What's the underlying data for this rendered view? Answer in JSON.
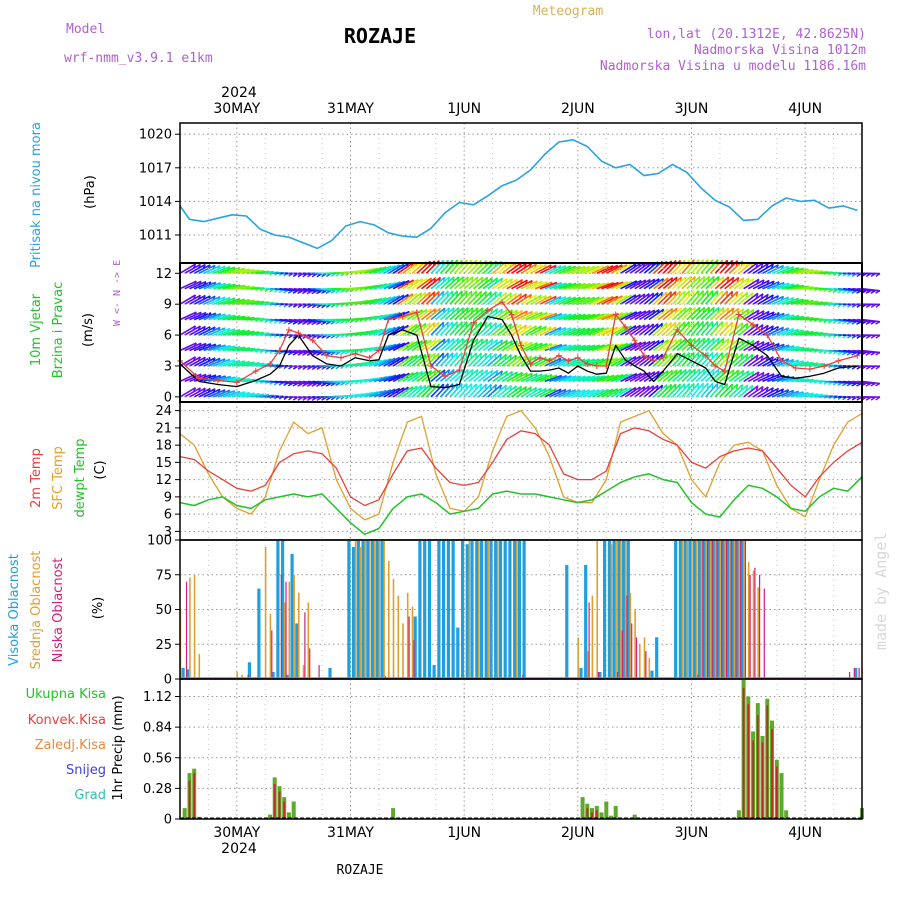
{
  "header": {
    "model_label": "Model",
    "model_name": "wrf-nmm_v3.9.1 e1km",
    "location": "ROZAJE",
    "product": "Meteogram",
    "coords": "lon,lat (20.1312E, 42.8625N)",
    "altitude": "Nadmorska Visina 1012m",
    "model_altitude": "Nadmorska Visina u modelu 1186.16m",
    "credit": "made by Angel",
    "footer_location": "ROZAJE"
  },
  "colors": {
    "pressure": "#29a3e0",
    "t2m": "#e8413c",
    "tsfc": "#e0a030",
    "dewpt": "#22c22a",
    "cloud_high": "#1e9fe0",
    "cloud_mid": "#e0a030",
    "cloud_low": "#d0207a",
    "precip_total": "#5ea82a",
    "precip_conv": "#c22a2a",
    "precip_snow": "#4040e0",
    "precip_grad": "#30c0b0",
    "wind_speed": "#000000",
    "wind_gust": "#e8413c"
  },
  "time_axis": {
    "top_year": "2024",
    "bottom_year": "2024",
    "dates": [
      "30MAY",
      "31MAY",
      "1JUN",
      "2JUN",
      "3JUN",
      "4JUN"
    ],
    "start_hour": -12,
    "end_hour": 132
  },
  "panels": {
    "pressure": {
      "title": "Pritisak na nivou mora",
      "unit": "(hPa)",
      "yticks": [
        "1020",
        "1017",
        "1014",
        "1011"
      ]
    },
    "wind": {
      "title1": "10m Vjetar",
      "title2": "Brzina i Pravac",
      "unit": "(m/s)",
      "compass": "W <- N -> E",
      "yticks": [
        "12",
        "9",
        "6",
        "3",
        "0"
      ]
    },
    "temp": {
      "title1": "2m Temp",
      "title2": "SFC Temp",
      "title3": "dewpt Temp",
      "unit": "(C)",
      "yticks": [
        "24",
        "21",
        "18",
        "15",
        "12",
        "9",
        "6",
        "3"
      ]
    },
    "cloud": {
      "title1": "Visoka Oblacnost",
      "title2": "Srednja Oblacnost",
      "title3": "Niska Oblacnost",
      "unit": "(%)",
      "yticks": [
        "100",
        "75",
        "50",
        "25",
        "0"
      ]
    },
    "precip": {
      "legend": [
        "Ukupna Kisa",
        "Konvek.Kisa",
        "Zaledj.Kisa",
        "Snijeg",
        "Grad"
      ],
      "unit": "1hr Precip (mm)",
      "yticks": [
        "1.12",
        "0.84",
        "0.56",
        "0.28",
        "0"
      ]
    }
  },
  "chart_data": [
    {
      "type": "line",
      "title": "Pritisak na nivou mora",
      "ylabel": "(hPa)",
      "ylim": [
        1008.5,
        1021
      ],
      "x": [
        -12,
        -10,
        -7,
        -4,
        -1,
        2,
        5,
        8,
        11,
        14,
        17,
        20,
        23,
        26,
        29,
        32,
        35,
        38,
        41,
        44,
        47,
        50,
        53,
        56,
        59,
        62,
        65,
        68,
        71,
        74,
        77,
        80,
        83,
        86,
        89,
        92,
        95,
        98,
        101,
        104,
        107,
        110,
        113,
        116,
        119,
        122,
        125,
        128,
        131
      ],
      "series": [
        {
          "values": [
            1013.6,
            1012.4,
            1012.2,
            1012.5,
            1012.8,
            1012.7,
            1011.5,
            1011.0,
            1010.8,
            1010.3,
            1009.8,
            1010.5,
            1011.8,
            1012.2,
            1011.9,
            1011.2,
            1010.9,
            1010.8,
            1011.6,
            1013.0,
            1013.9,
            1013.7,
            1014.5,
            1015.4,
            1015.9,
            1016.8,
            1018.2,
            1019.3,
            1019.5,
            1018.9,
            1017.6,
            1017.0,
            1017.3,
            1016.3,
            1016.5,
            1017.3,
            1016.6,
            1015.2,
            1014.1,
            1013.5,
            1012.3,
            1012.4,
            1013.6,
            1014.3,
            1014.0,
            1014.1,
            1013.4,
            1013.6,
            1013.2
          ]
        }
      ]
    },
    {
      "type": "line",
      "title": "10m Vjetar Brzina i Pravac",
      "ylabel": "(m/s)",
      "ylim": [
        -0.5,
        13
      ],
      "x": [
        -12,
        -8,
        -4,
        0,
        4,
        7,
        9,
        11,
        13,
        16,
        19,
        22,
        25,
        28,
        30,
        32,
        35,
        38,
        41,
        44,
        47,
        50,
        53,
        56,
        58,
        60,
        62,
        64,
        66,
        68,
        70,
        72,
        74,
        76,
        78,
        80,
        82,
        84,
        86,
        88,
        90,
        93,
        96,
        99,
        101,
        103,
        106,
        109,
        112,
        115,
        118,
        121,
        124,
        127,
        131
      ],
      "series": [
        {
          "values": [
            3.2,
            1.5,
            1.2,
            1.0,
            1.6,
            2.2,
            3.0,
            5.0,
            6.0,
            4.0,
            3.2,
            3.0,
            3.8,
            3.5,
            3.6,
            6.0,
            6.5,
            6.0,
            1.0,
            0.9,
            1.2,
            5.5,
            7.8,
            7.5,
            6.0,
            4.0,
            2.5,
            2.5,
            2.6,
            2.8,
            2.3,
            3.0,
            2.5,
            2.2,
            2.3,
            5.0,
            3.6,
            3.0,
            2.5,
            1.5,
            2.5,
            4.2,
            3.5,
            2.8,
            1.5,
            1.2,
            5.7,
            5.0,
            4.0,
            2.0,
            1.8,
            2.0,
            2.3,
            2.8,
            3.0
          ]
        },
        {
          "name": "",
          "values": [
            3.5,
            1.8,
            1.6,
            1.4,
            2.5,
            3.2,
            4.5,
            6.5,
            6.2,
            5.5,
            4.0,
            3.8,
            4.2,
            3.8,
            4.5,
            7.5,
            7.8,
            8.2,
            3.0,
            2.0,
            2.6,
            7.2,
            8.4,
            9.2,
            8.0,
            5.0,
            3.2,
            3.8,
            3.5,
            4.0,
            3.5,
            3.8,
            3.2,
            3.0,
            3.0,
            8.0,
            6.8,
            5.5,
            4.0,
            3.5,
            3.8,
            6.5,
            5.0,
            4.0,
            3.0,
            2.5,
            8.0,
            7.0,
            6.0,
            3.5,
            2.8,
            2.7,
            3.0,
            3.5,
            4.0
          ]
        }
      ]
    },
    {
      "type": "line",
      "title": "2m Temp / SFC Temp / dewpt Temp",
      "ylabel": "(C)",
      "ylim": [
        1.5,
        25.5
      ],
      "x": [
        -12,
        -9,
        -6,
        -3,
        0,
        3,
        6,
        9,
        12,
        15,
        18,
        21,
        24,
        27,
        30,
        33,
        36,
        39,
        42,
        45,
        48,
        51,
        54,
        57,
        60,
        63,
        66,
        69,
        72,
        75,
        78,
        81,
        84,
        87,
        90,
        93,
        96,
        99,
        102,
        105,
        108,
        111,
        114,
        117,
        120,
        123,
        126,
        129,
        132
      ],
      "series": [
        {
          "name": "2m Temp",
          "values": [
            16.0,
            15.5,
            13.5,
            12.0,
            10.5,
            10.0,
            11.0,
            15.0,
            16.5,
            17.0,
            16.5,
            14.0,
            9.0,
            7.5,
            8.5,
            13.0,
            17.0,
            17.5,
            14.0,
            11.5,
            11.0,
            11.5,
            15.0,
            19.0,
            20.5,
            20.0,
            18.0,
            13.0,
            12.0,
            12.0,
            13.5,
            20.0,
            21.0,
            20.5,
            19.0,
            18.0,
            15.0,
            14.0,
            16.0,
            17.0,
            17.5,
            17.0,
            14.0,
            11.0,
            9.0,
            12.5,
            15.0,
            17.0,
            18.5
          ]
        },
        {
          "name": "SFC Temp",
          "values": [
            20.0,
            18.0,
            13.0,
            9.0,
            7.0,
            6.0,
            9.0,
            17.0,
            22.0,
            20.0,
            21.0,
            12.0,
            7.0,
            5.0,
            6.0,
            15.0,
            22.0,
            23.0,
            13.0,
            7.0,
            6.5,
            9.0,
            17.0,
            23.0,
            24.0,
            21.0,
            16.0,
            9.0,
            8.0,
            8.0,
            12.0,
            22.0,
            23.0,
            24.0,
            20.0,
            18.0,
            12.0,
            9.0,
            15.0,
            18.0,
            18.5,
            17.0,
            11.0,
            7.0,
            5.5,
            12.0,
            18.0,
            22.0,
            23.5
          ]
        },
        {
          "name": "dewpt Temp",
          "values": [
            8.0,
            7.5,
            8.5,
            9.0,
            7.5,
            7.0,
            8.5,
            9.0,
            9.5,
            9.0,
            9.5,
            7.0,
            4.5,
            2.5,
            3.5,
            7.0,
            9.0,
            9.5,
            8.0,
            6.0,
            6.5,
            7.0,
            9.5,
            10.0,
            9.5,
            9.5,
            9.0,
            8.5,
            8.0,
            8.5,
            10.0,
            11.5,
            12.5,
            13.0,
            12.0,
            11.5,
            8.0,
            6.0,
            5.5,
            8.5,
            11.0,
            10.5,
            9.0,
            7.0,
            6.5,
            9.0,
            10.5,
            10.0,
            12.5
          ]
        }
      ]
    },
    {
      "type": "bar",
      "title": "Visoka / Srednja / Niska Oblacnost",
      "ylabel": "(%)",
      "ylim": [
        0,
        100
      ],
      "series": [
        {
          "name": "Visoka Oblacnost",
          "x": [
            -11,
            -10,
            3,
            5,
            8,
            9,
            10,
            11,
            12,
            13,
            20,
            24,
            25,
            26,
            27,
            28,
            29,
            30,
            31,
            38,
            39,
            40,
            41,
            42,
            43,
            44,
            45,
            46,
            47,
            48,
            49,
            50,
            51,
            52,
            53,
            54,
            55,
            56,
            57,
            58,
            59,
            60,
            61,
            70,
            73,
            74,
            77,
            78,
            79,
            80,
            81,
            82,
            83,
            88,
            89,
            93,
            94,
            95,
            96,
            97,
            98,
            99,
            100,
            101,
            102,
            103,
            104,
            105,
            106,
            107,
            131
          ],
          "values": [
            8,
            7,
            12,
            65,
            5,
            100,
            100,
            3,
            90,
            40,
            8,
            100,
            95,
            100,
            100,
            100,
            100,
            100,
            100,
            45,
            100,
            100,
            100,
            10,
            100,
            100,
            100,
            100,
            37,
            100,
            97,
            100,
            100,
            100,
            100,
            100,
            100,
            100,
            100,
            100,
            100,
            100,
            100,
            82,
            8,
            82,
            5,
            100,
            100,
            100,
            100,
            100,
            100,
            6,
            30,
            100,
            100,
            100,
            100,
            100,
            100,
            100,
            100,
            100,
            100,
            100,
            100,
            100,
            100,
            100,
            8
          ]
        },
        {
          "name": "Srednja Oblacnost",
          "x": [
            -12,
            -10,
            -9,
            -8,
            0,
            1,
            6,
            7,
            10,
            11,
            12,
            13,
            14,
            15,
            25,
            26,
            27,
            28,
            29,
            30,
            31,
            32,
            33,
            34,
            35,
            36,
            37,
            49,
            51,
            53,
            55,
            59,
            72,
            74,
            75,
            76,
            79,
            80,
            81,
            82,
            83,
            84,
            85,
            86,
            87,
            94,
            95,
            96,
            97,
            98,
            99,
            100,
            101,
            102,
            103,
            104,
            105,
            106,
            107,
            108,
            109,
            110
          ],
          "values": [
            50,
            73,
            75,
            18,
            5,
            3,
            95,
            47,
            55,
            70,
            75,
            62,
            10,
            55,
            100,
            95,
            100,
            100,
            100,
            100,
            100,
            85,
            72,
            60,
            40,
            62,
            52,
            100,
            100,
            100,
            100,
            100,
            30,
            20,
            60,
            100,
            97,
            100,
            100,
            100,
            62,
            50,
            25,
            30,
            15,
            100,
            100,
            100,
            100,
            100,
            100,
            100,
            100,
            100,
            100,
            100,
            100,
            100,
            100,
            84,
            78,
            66
          ]
        },
        {
          "name": "Niska Oblacnost",
          "x": [
            -11,
            2,
            7,
            9,
            10,
            14,
            15,
            17,
            31,
            36,
            37,
            60,
            74,
            76,
            80,
            81,
            82,
            83,
            84,
            86,
            97,
            98,
            99,
            100,
            101,
            102,
            103,
            104,
            105,
            106,
            107,
            108,
            109,
            110,
            111,
            129,
            130,
            131
          ],
          "values": [
            70,
            3,
            35,
            75,
            70,
            48,
            22,
            10,
            2,
            45,
            28,
            3,
            55,
            5,
            5,
            35,
            60,
            40,
            30,
            20,
            3,
            100,
            100,
            100,
            100,
            100,
            100,
            100,
            100,
            100,
            100,
            75,
            80,
            75,
            65,
            5,
            8,
            8
          ]
        }
      ]
    },
    {
      "type": "bar",
      "title": "1hr Precip",
      "ylabel": "1hr Precip (mm)",
      "ylim": [
        0,
        1.28
      ],
      "series": [
        {
          "name": "Ukupna Kisa",
          "x": [
            -11,
            -10,
            -9,
            -8,
            7,
            8,
            9,
            10,
            11,
            12,
            33,
            73,
            74,
            75,
            76,
            77,
            78,
            79,
            80,
            84,
            106,
            107,
            108,
            109,
            110,
            111,
            112,
            113,
            114,
            115,
            116,
            132
          ],
          "values": [
            0.1,
            0.42,
            0.46,
            0.02,
            0.04,
            0.38,
            0.3,
            0.2,
            0.06,
            0.16,
            0.1,
            0.2,
            0.14,
            0.1,
            0.12,
            0.06,
            0.16,
            0.03,
            0.12,
            0.04,
            0.08,
            1.3,
            1.12,
            0.8,
            1.06,
            0.76,
            1.1,
            0.9,
            0.54,
            0.42,
            0.08,
            0.1
          ]
        },
        {
          "name": "Konvek.Kisa",
          "x": [
            -10,
            -9,
            8,
            9,
            10,
            74,
            75,
            76,
            107,
            108,
            109,
            110,
            111,
            112,
            113,
            114
          ],
          "values": [
            0.35,
            0.42,
            0.32,
            0.25,
            0.16,
            0.1,
            0.06,
            0.08,
            1.2,
            1.05,
            0.72,
            0.95,
            0.7,
            1.04,
            0.82,
            0.48
          ]
        },
        {
          "name": "Zaledj.Kisa",
          "values": []
        },
        {
          "name": "Snijeg",
          "values": []
        },
        {
          "name": "Grad",
          "values": []
        }
      ]
    }
  ]
}
